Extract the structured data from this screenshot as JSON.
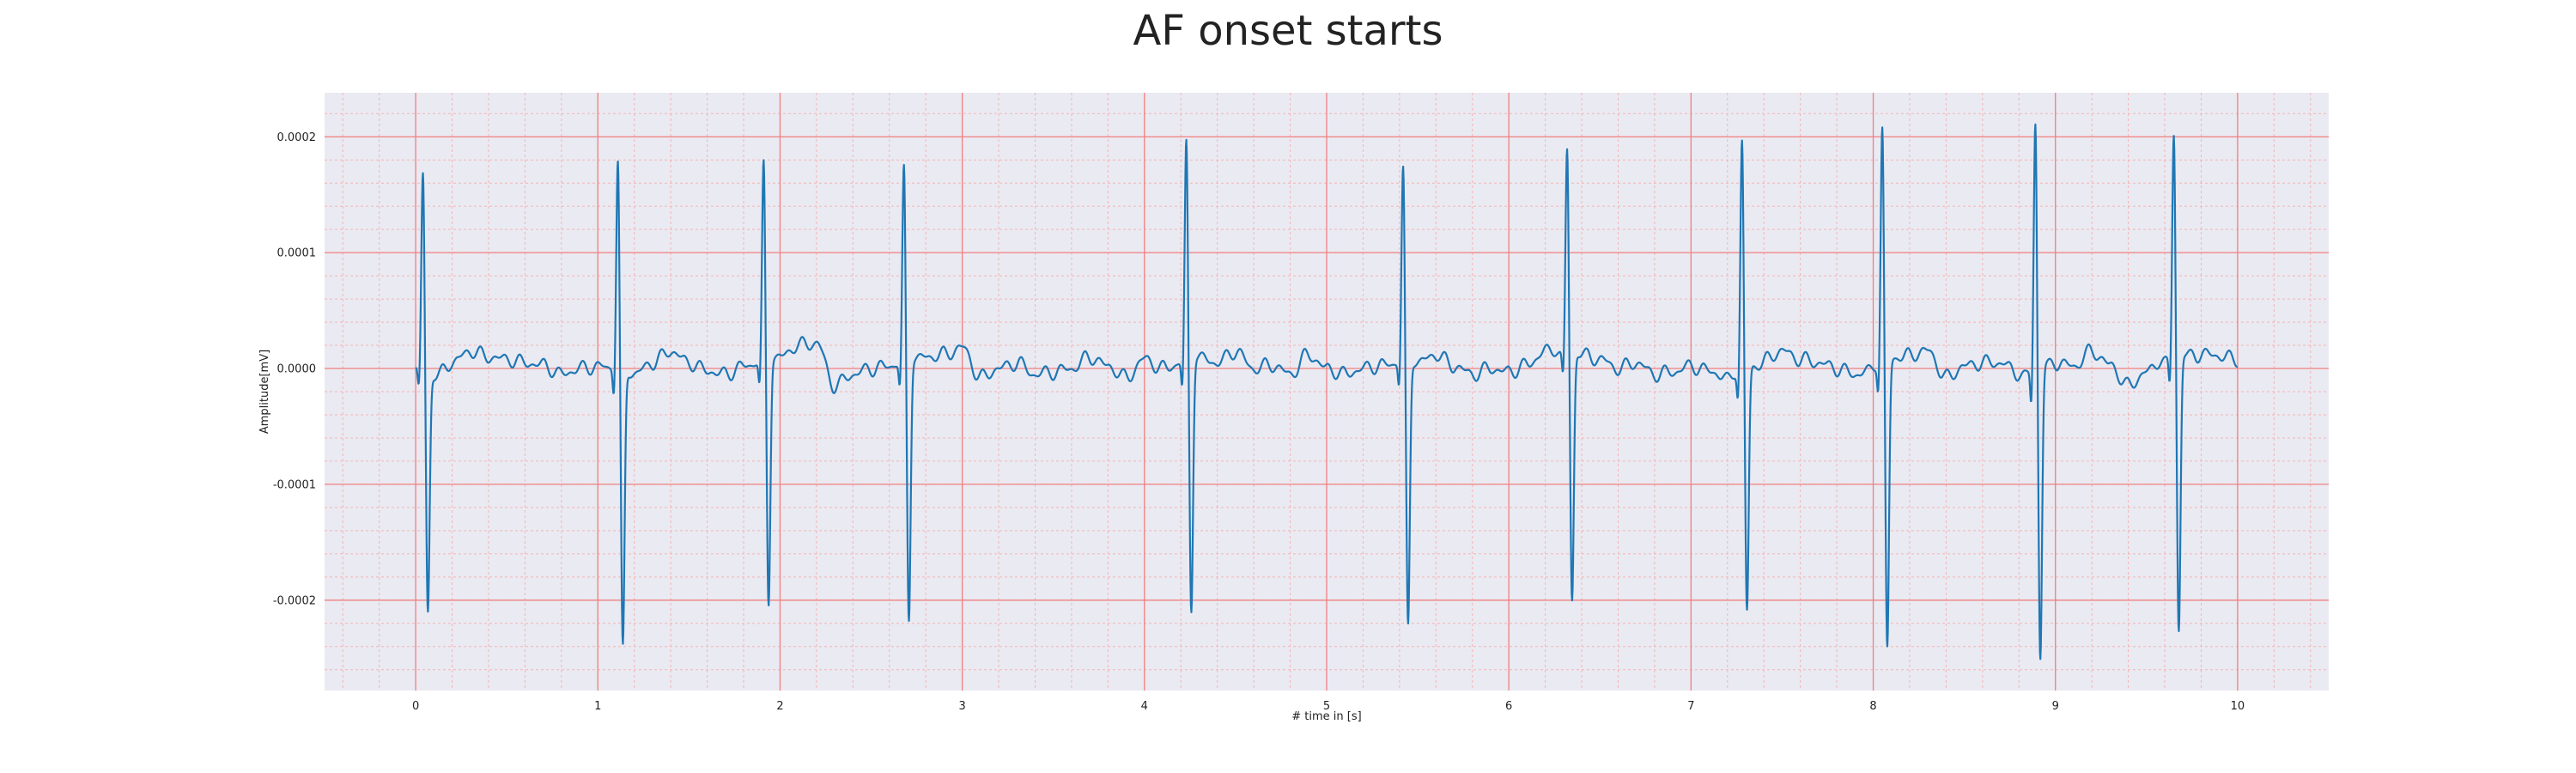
{
  "chart_data": {
    "type": "line",
    "title": "AF onset starts",
    "xlabel": "# time in [s]",
    "ylabel": "Amplitude[mV]",
    "xlim": [
      -0.5,
      10.5
    ],
    "ylim": [
      -0.000278,
      0.000238
    ],
    "x_ticks": [
      0,
      1,
      2,
      3,
      4,
      5,
      6,
      7,
      8,
      9,
      10
    ],
    "x_tick_labels": [
      "0",
      "1",
      "2",
      "3",
      "4",
      "5",
      "6",
      "7",
      "8",
      "9",
      "10"
    ],
    "y_ticks": [
      -0.0002,
      -0.0001,
      0.0,
      0.0001,
      0.0002
    ],
    "y_tick_labels": [
      "-0.0002",
      "-0.0001",
      "0.0000",
      "0.0001",
      "0.0002"
    ],
    "grid": true,
    "minor_grid": true,
    "colors": {
      "line": "#1f77b4",
      "plot_background": "#eaeaf2",
      "major_grid": "#f08080",
      "minor_grid": "#f4b4b4"
    },
    "beats": [
      {
        "t": 0.04,
        "r": 0.000175,
        "s": -0.000205,
        "q": -1.8e-05
      },
      {
        "t": 1.11,
        "r": 0.000185,
        "s": -0.000237,
        "q": -2.5e-05
      },
      {
        "t": 1.91,
        "r": 0.000177,
        "s": -0.000213,
        "q": -2.2e-05
      },
      {
        "t": 2.68,
        "r": 0.000175,
        "s": -0.000225,
        "q": -2.2e-05
      },
      {
        "t": 4.23,
        "r": 0.000194,
        "s": -0.00022,
        "q": -2.5e-05
      },
      {
        "t": 5.42,
        "r": 0.000174,
        "s": -0.000227,
        "q": -2.2e-05
      },
      {
        "t": 6.32,
        "r": 0.00018,
        "s": -0.000214,
        "q": -2.2e-05
      },
      {
        "t": 7.28,
        "r": 0.000203,
        "s": -0.00021,
        "q": -2.5e-05
      },
      {
        "t": 8.05,
        "r": 0.00021,
        "s": -0.000247,
        "q": -2.5e-05
      },
      {
        "t": 8.89,
        "r": 0.000216,
        "s": -0.000253,
        "q": -3.2e-05
      },
      {
        "t": 9.65,
        "r": 0.000196,
        "s": -0.000238,
        "q": -2.5e-05
      }
    ],
    "series": [
      {
        "x": [
          0.0,
          0.1,
          0.2,
          0.3,
          0.4,
          0.5,
          0.6,
          0.7,
          0.8,
          0.9,
          1.0,
          1.2,
          1.3,
          1.4,
          1.5,
          1.6,
          1.7,
          1.8,
          2.0,
          2.1,
          2.2,
          2.3,
          2.4,
          2.5,
          2.6,
          2.8,
          2.9,
          3.0,
          3.1,
          3.2,
          3.3,
          3.4,
          3.5,
          3.6,
          3.7,
          3.8,
          3.9,
          4.0,
          4.1,
          4.3,
          4.4,
          4.5,
          4.6,
          4.7,
          4.8,
          4.9,
          5.0,
          5.1,
          5.2,
          5.3,
          5.5,
          5.6,
          5.7,
          5.8,
          5.9,
          6.0,
          6.1,
          6.2,
          6.4,
          6.5,
          6.6,
          6.7,
          6.8,
          6.9,
          7.0,
          7.1,
          7.2,
          7.35,
          7.5,
          7.6,
          7.7,
          7.8,
          7.9,
          8.0,
          8.15,
          8.3,
          8.4,
          8.5,
          8.6,
          8.7,
          8.8,
          9.0,
          9.1,
          9.2,
          9.3,
          9.4,
          9.5,
          9.6,
          9.75,
          9.85,
          10.0
        ],
        "values": [
          0.0,
          -8e-06,
          5e-06,
          1.5e-05,
          1e-05,
          8e-06,
          5e-06,
          3e-06,
          -5e-06,
          0.0,
          2e-06,
          -5e-06,
          5e-06,
          1.5e-05,
          5e-06,
          -2e-06,
          -5e-06,
          2e-06,
          1e-05,
          2e-05,
          2.2e-05,
          -1.5e-05,
          -5e-06,
          0.0,
          2e-06,
          1e-05,
          1.2e-05,
          1.8e-05,
          -8e-06,
          0.0,
          5e-06,
          -5e-06,
          -3e-06,
          0.0,
          1e-05,
          2e-06,
          -8e-06,
          8e-06,
          0.0,
          1e-05,
          5e-06,
          1.5e-05,
          0.0,
          3e-06,
          -5e-06,
          1.2e-05,
          0.0,
          -5e-06,
          0.0,
          3e-06,
          5e-06,
          1.2e-05,
          2e-06,
          -5e-06,
          0.0,
          -3e-06,
          3e-06,
          1.5e-05,
          1.2e-05,
          8e-06,
          0.0,
          5e-06,
          -5e-06,
          -3e-06,
          2e-06,
          -2e-06,
          -8e-06,
          2e-06,
          1.5e-05,
          8e-06,
          5e-06,
          0.0,
          -5e-06,
          0.0,
          1e-05,
          1.5e-05,
          -8e-06,
          2e-06,
          5e-06,
          5e-06,
          -5e-06,
          5e-06,
          2e-06,
          1.5e-05,
          3e-06,
          -1.5e-05,
          -3e-06,
          8e-06,
          1.2e-05,
          1.2e-05,
          8e-06
        ]
      }
    ]
  }
}
